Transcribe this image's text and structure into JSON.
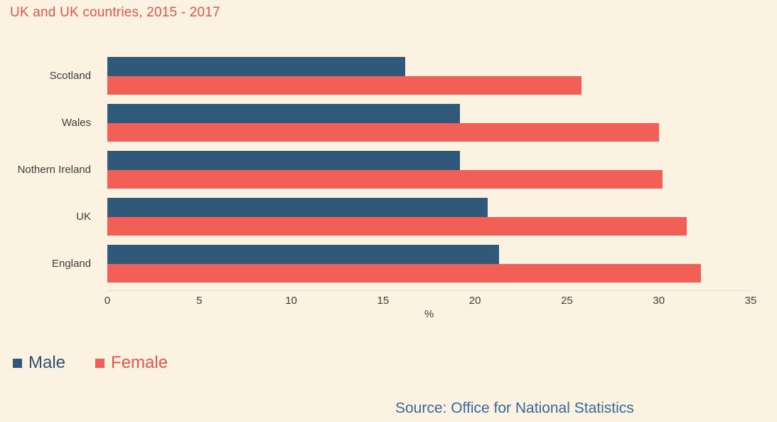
{
  "title": "UK and UK countries, 2015 - 2017",
  "legend": {
    "male_label": "Male",
    "female_label": "Female"
  },
  "source": "Source: Office for National Statistics",
  "colors": {
    "background": "#fcf2e1",
    "male_bar": "#2f5879",
    "female_bar": "#f15f57",
    "title_text": "#e2564c",
    "male_legend_text": "#2c5170",
    "female_legend_text": "#e2564c",
    "axis_text": "#3d3d3d",
    "source_text": "#38699c"
  },
  "chart_data": {
    "type": "bar",
    "orientation": "horizontal",
    "title": "UK and UK countries, 2015 - 2017",
    "categories": [
      "Scotland",
      "Wales",
      "Nothern Ireland",
      "UK",
      "England"
    ],
    "series": [
      {
        "name": "Male",
        "color": "#2f5879",
        "values": [
          16.2,
          19.2,
          19.2,
          20.7,
          21.3
        ]
      },
      {
        "name": "Female",
        "color": "#f15f57",
        "values": [
          25.8,
          30.0,
          30.2,
          31.5,
          32.3
        ]
      }
    ],
    "xlabel": "%",
    "ylabel": "",
    "xlim": [
      0,
      35
    ],
    "xticks": [
      0,
      5,
      10,
      15,
      20,
      25,
      30,
      35
    ],
    "grid": false,
    "legend_position": "bottom-left",
    "source_note": "Source: Office for National Statistics"
  }
}
